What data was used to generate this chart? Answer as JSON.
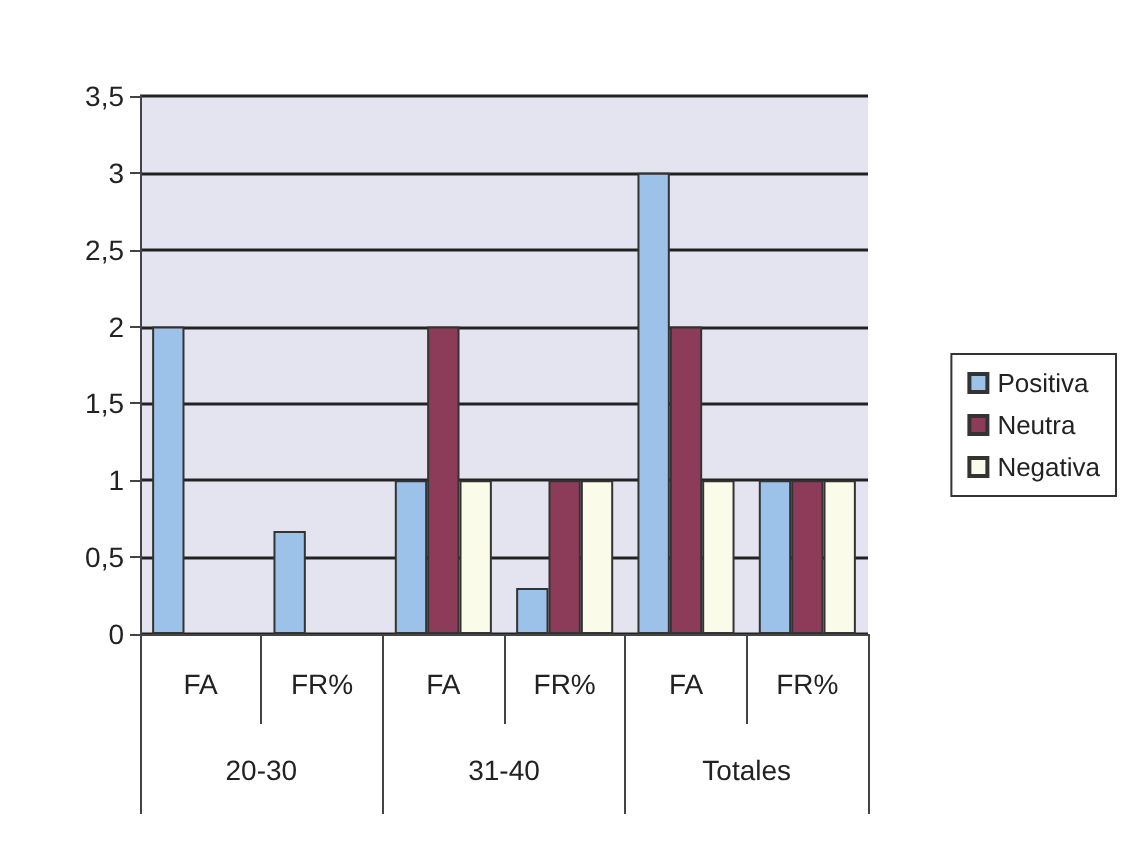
{
  "chart_data": {
    "type": "bar",
    "categories": [
      "FA",
      "FR%",
      "FA",
      "FR%",
      "FA",
      "FR%"
    ],
    "annotations": [
      "20-30",
      "31-40",
      "Totales"
    ],
    "series": [
      {
        "name": "Positiva",
        "color": "#9cc2ea",
        "values": [
          2,
          0.67,
          1,
          0.3,
          3,
          1
        ]
      },
      {
        "name": "Neutra",
        "color": "#8c3b58",
        "values": [
          null,
          null,
          2,
          1,
          2,
          1
        ]
      },
      {
        "name": "Negativa",
        "color": "#fbfbea",
        "values": [
          null,
          null,
          1,
          1,
          1,
          1
        ]
      }
    ],
    "ylim": [
      0,
      3.5
    ],
    "yticks": [
      0,
      {
        "value": 0.5,
        "label": "0,5"
      },
      1,
      {
        "value": 1.5,
        "label": "1,5"
      },
      2,
      {
        "value": 2.5,
        "label": "2,5"
      },
      3,
      {
        "value": 3.5,
        "label": "3,5"
      }
    ],
    "grid": "y",
    "legend": "right"
  }
}
